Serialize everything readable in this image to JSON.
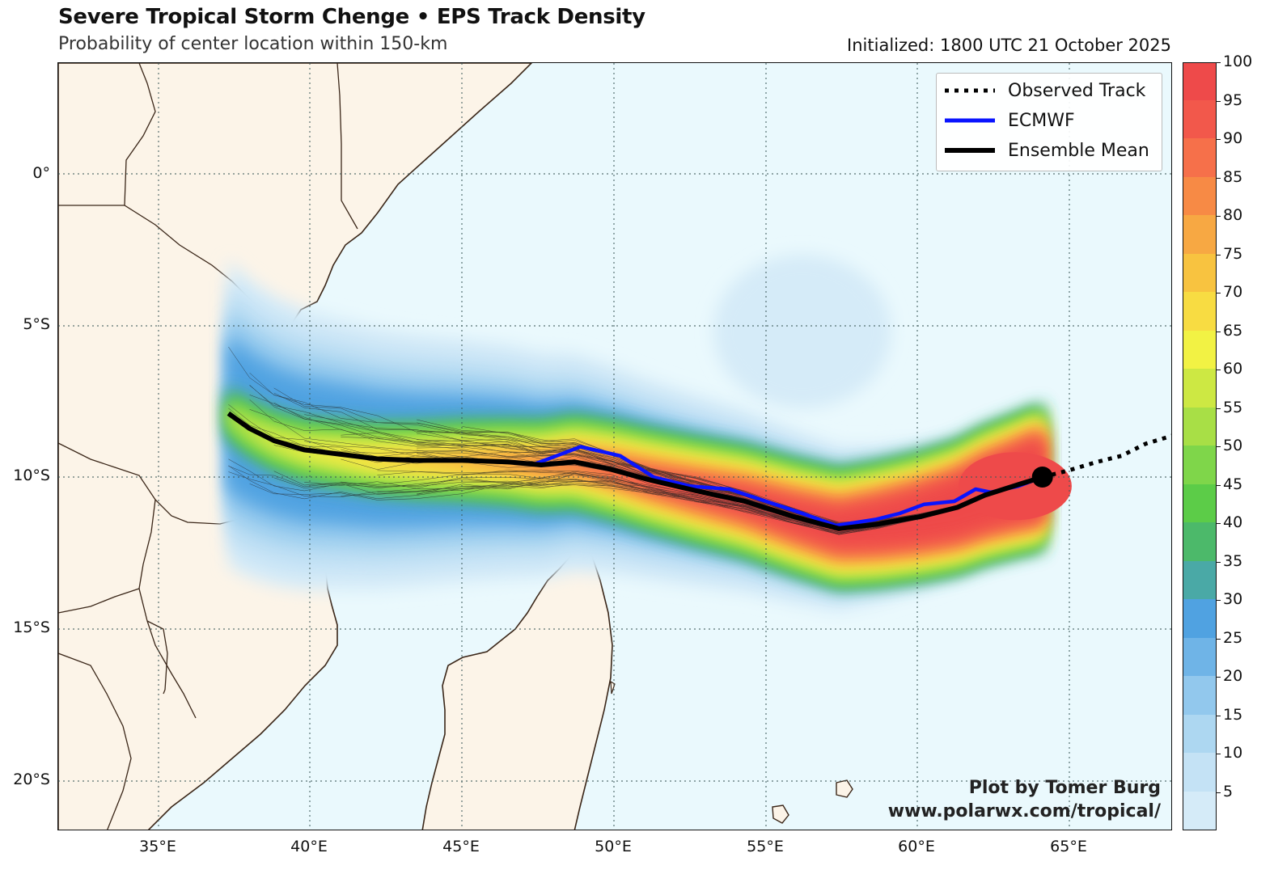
{
  "header": {
    "title": "Severe Tropical Storm Chenge • EPS Track Density",
    "subtitle": "Probability of center location within 150-km",
    "initialized": "Initialized: 1800 UTC 21 October 2025"
  },
  "axes": {
    "lat_labels": [
      "0°",
      "5°S",
      "10°S",
      "15°S",
      "20°S"
    ],
    "lon_labels": [
      "35°E",
      "40°E",
      "45°E",
      "50°E",
      "55°E",
      "60°E",
      "65°E"
    ]
  },
  "legend": {
    "observed": "Observed Track",
    "ecmwf": "ECMWF",
    "mean": "Ensemble Mean"
  },
  "credit": {
    "line1": "Plot by Tomer Burg",
    "line2": "www.polarwx.com/tropical/"
  },
  "colorbar": {
    "ticks": [
      "100",
      "95",
      "90",
      "85",
      "80",
      "75",
      "70",
      "65",
      "60",
      "55",
      "50",
      "45",
      "40",
      "35",
      "30",
      "25",
      "20",
      "15",
      "10",
      "5"
    ],
    "colors": [
      "#d5ebf8",
      "#c4e2f5",
      "#add7f1",
      "#92c8ed",
      "#6fb4e7",
      "#50a2e1",
      "#4aa9a6",
      "#4cb96a",
      "#5ccc48",
      "#7fd64a",
      "#a8df46",
      "#cde843",
      "#f2f244",
      "#f8dc42",
      "#f8c340",
      "#f7a843",
      "#f78a45",
      "#f6704a",
      "#f2584b",
      "#ee4a4a"
    ],
    "colors_note": "bottom-to-top order, 0-5 .. 95-100"
  },
  "tracks": {
    "observed_lonlat": [
      [
        64.1,
        -10.0
      ],
      [
        64.9,
        -9.8
      ],
      [
        65.9,
        -9.5
      ],
      [
        66.7,
        -9.3
      ],
      [
        67.5,
        -8.9
      ],
      [
        68.5,
        -8.6
      ]
    ],
    "ecmwf_lonlat": [
      [
        47.3,
        -9.6
      ],
      [
        48.1,
        -9.3
      ],
      [
        48.9,
        -9.0
      ],
      [
        50.2,
        -9.3
      ],
      [
        51.3,
        -10.0
      ],
      [
        52.5,
        -10.3
      ],
      [
        53.8,
        -10.4
      ],
      [
        55.0,
        -10.8
      ],
      [
        56.2,
        -11.2
      ],
      [
        57.3,
        -11.6
      ],
      [
        58.6,
        -11.4
      ],
      [
        59.4,
        -11.2
      ],
      [
        60.2,
        -10.9
      ],
      [
        61.2,
        -10.8
      ],
      [
        61.9,
        -10.4
      ],
      [
        62.4,
        -10.5
      ],
      [
        63.3,
        -10.3
      ],
      [
        64.1,
        -10.0
      ]
    ],
    "mean_lonlat": [
      [
        37.3,
        -7.9
      ],
      [
        38.0,
        -8.4
      ],
      [
        38.8,
        -8.8
      ],
      [
        39.8,
        -9.1
      ],
      [
        41.0,
        -9.25
      ],
      [
        42.2,
        -9.4
      ],
      [
        43.5,
        -9.45
      ],
      [
        45.0,
        -9.45
      ],
      [
        46.5,
        -9.5
      ],
      [
        47.6,
        -9.6
      ],
      [
        48.7,
        -9.5
      ],
      [
        49.9,
        -9.75
      ],
      [
        51.2,
        -10.1
      ],
      [
        52.7,
        -10.45
      ],
      [
        54.3,
        -10.8
      ],
      [
        55.9,
        -11.3
      ],
      [
        57.4,
        -11.7
      ],
      [
        58.7,
        -11.55
      ],
      [
        60.1,
        -11.3
      ],
      [
        61.3,
        -11.0
      ],
      [
        62.2,
        -10.6
      ],
      [
        63.3,
        -10.25
      ],
      [
        64.1,
        -10.0
      ]
    ],
    "current_position_lonlat": [
      64.1,
      -10.0
    ]
  }
}
